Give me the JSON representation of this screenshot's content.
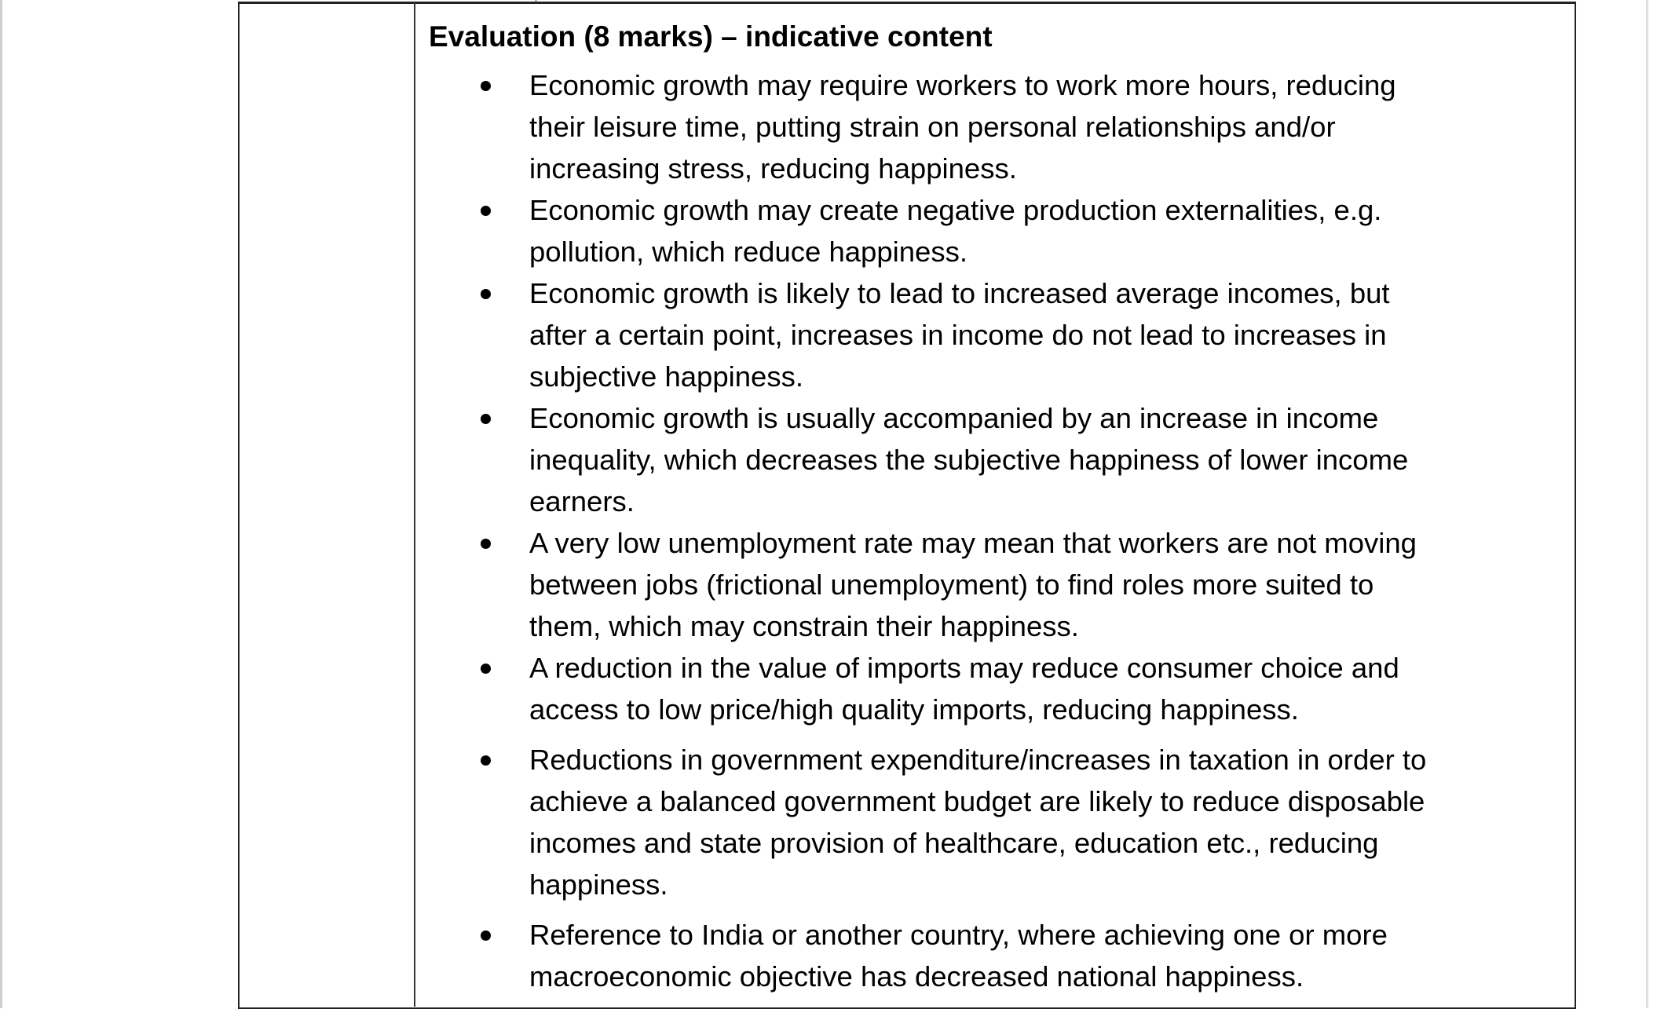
{
  "heading": "Evaluation (8 marks) – indicative content",
  "bullets": [
    {
      "lines": [
        "Economic growth may require workers to work more hours, reducing",
        "their leisure time, putting strain on personal relationships and/or",
        "increasing stress, reducing happiness."
      ]
    },
    {
      "lines": [
        "Economic growth may create negative production externalities, e.g.",
        "pollution, which reduce happiness."
      ]
    },
    {
      "lines": [
        "Economic growth is likely to lead to increased average incomes, but",
        "after a certain point, increases in income do not lead to increases in",
        "subjective happiness."
      ]
    },
    {
      "lines": [
        "Economic growth is usually accompanied by an increase in income",
        "inequality, which decreases the subjective happiness of lower income",
        "earners."
      ]
    },
    {
      "lines": [
        "A very low unemployment rate may mean that workers are not moving",
        "between jobs (frictional unemployment) to find roles more suited to",
        "them, which may constrain their happiness."
      ]
    },
    {
      "lines": [
        "A reduction in the value of imports may reduce consumer choice and",
        "access to low price/high quality imports, reducing happiness."
      ]
    },
    {
      "lines": [
        "Reductions in government expenditure/increases in taxation in order to",
        "achieve a balanced government budget are likely to reduce disposable",
        "incomes and state provision of healthcare, education etc., reducing",
        "happiness."
      ]
    },
    {
      "lines": [
        "Reference to India or another country, where achieving one or more",
        "macroeconomic objective has decreased national happiness."
      ]
    }
  ]
}
